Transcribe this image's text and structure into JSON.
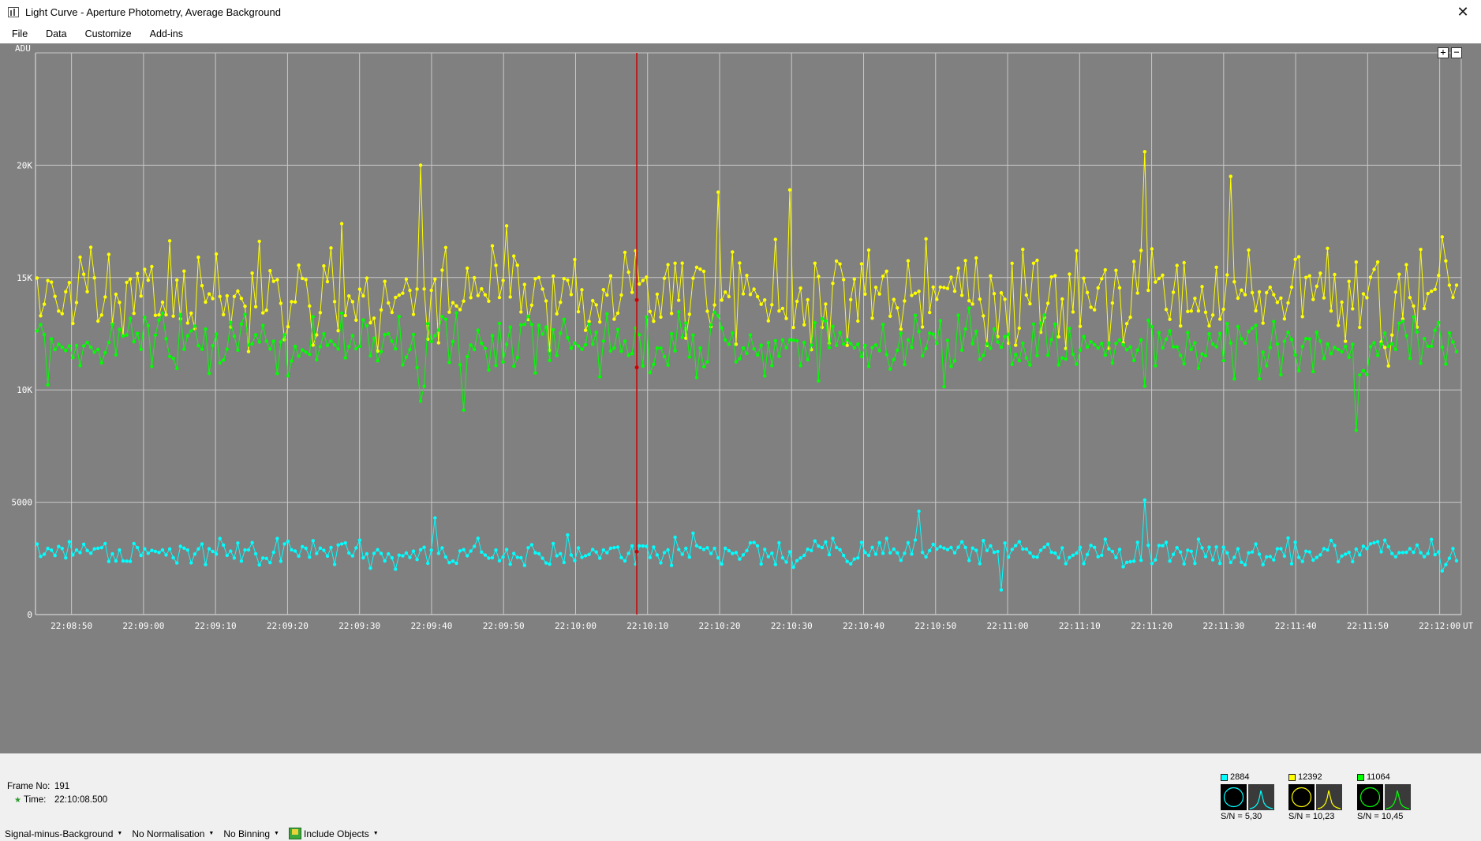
{
  "window": {
    "title": "Light Curve - Aperture Photometry, Average Background",
    "close_glyph": "✕"
  },
  "menu": [
    "File",
    "Data",
    "Customize",
    "Add-ins"
  ],
  "zoom": {
    "in": "+",
    "out": "−"
  },
  "chart": {
    "y_label": "ADU",
    "y_ticks": [
      "0",
      "5000",
      "10K",
      "15K",
      "20K"
    ],
    "x_ticks": [
      "22:08:50",
      "22:09:00",
      "22:09:10",
      "22:09:20",
      "22:09:30",
      "22:09:40",
      "22:09:50",
      "22:10:00",
      "22:10:10",
      "22:10:20",
      "22:10:30",
      "22:10:40",
      "22:10:50",
      "22:11:00",
      "22:11:10",
      "22:11:20",
      "22:11:30",
      "22:11:40",
      "22:11:50",
      "22:12:00"
    ],
    "x_unit": "UT"
  },
  "chart_data": {
    "type": "line",
    "ylabel": "ADU",
    "xlabel": "UT",
    "ylim": [
      0,
      25000
    ],
    "x_range": [
      "22:08:45",
      "22:12:03"
    ],
    "grid": true,
    "cursor_time": "22:10:08.500",
    "series": [
      {
        "color": "#ffff00",
        "mean": 14200,
        "spread": 1700,
        "seed": 11,
        "peaks": [
          [
            0.27,
            20000
          ],
          [
            0.53,
            18900
          ],
          [
            0.78,
            20600
          ],
          [
            0.84,
            19500
          ],
          [
            0.33,
            17300
          ],
          [
            0.48,
            18800
          ]
        ]
      },
      {
        "color": "#00ff00",
        "mean": 12000,
        "spread": 1100,
        "seed": 29,
        "peaks": [
          [
            0.93,
            8200
          ],
          [
            0.27,
            9500
          ],
          [
            0.3,
            9100
          ]
        ]
      },
      {
        "color": "#00ffff",
        "mean": 2800,
        "spread": 500,
        "seed": 47,
        "peaks": [
          [
            0.78,
            5100
          ],
          [
            0.62,
            4600
          ],
          [
            0.28,
            4300
          ],
          [
            0.68,
            1100
          ]
        ]
      }
    ]
  },
  "info": {
    "frame_label": "Frame No:",
    "frame_value": "191",
    "time_label": "Time:",
    "time_value": "22:10:08.500"
  },
  "objects": [
    {
      "color": "#00ffff",
      "value": "2884",
      "sn_label": "S/N =",
      "sn": "5,30"
    },
    {
      "color": "#ffff00",
      "value": "12392",
      "sn_label": "S/N =",
      "sn": "10,23"
    },
    {
      "color": "#00ff00",
      "value": "11064",
      "sn_label": "S/N =",
      "sn": "10,45"
    }
  ],
  "bottom": {
    "signal": "Signal-minus-Background",
    "normalisation": "No Normalisation",
    "binning": "No Binning",
    "include": "Include Objects"
  }
}
